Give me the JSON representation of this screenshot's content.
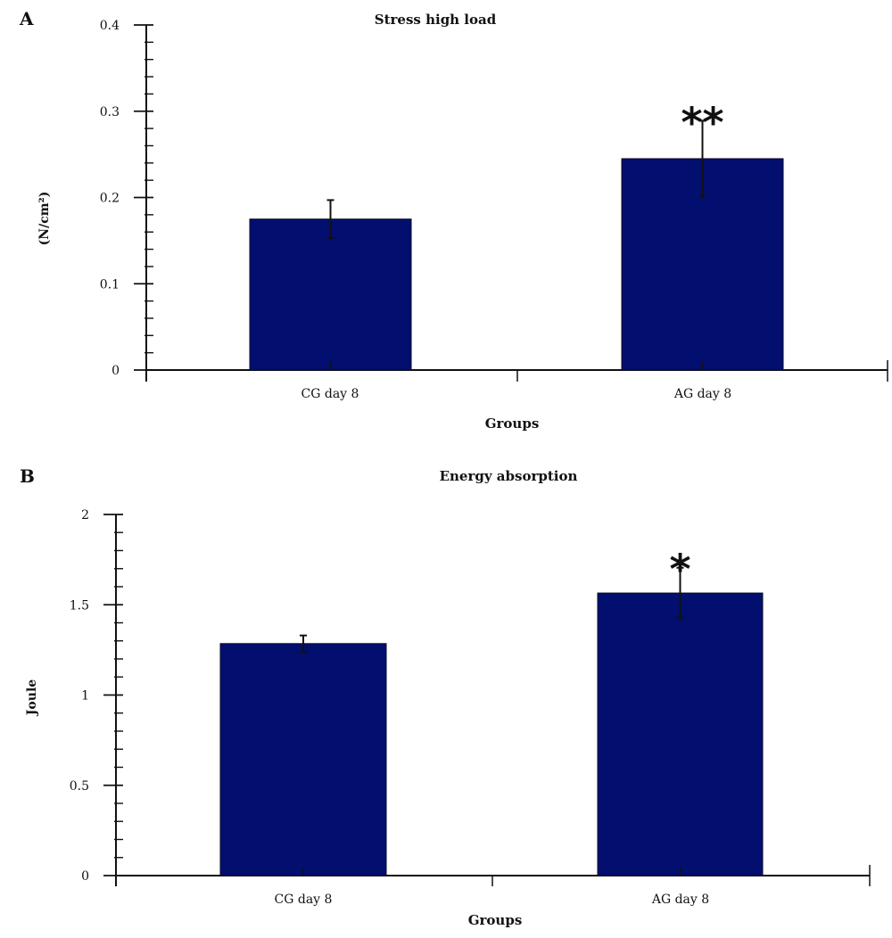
{
  "chart_data": [
    {
      "panel": "A",
      "type": "bar",
      "title": "Stress high load",
      "xlabel": "Groups",
      "ylabel": "(N/cm²)",
      "categories": [
        "CG day 8",
        "AG day 8"
      ],
      "values": [
        0.175,
        0.245
      ],
      "errors": [
        0.022,
        0.044
      ],
      "annotations": [
        "",
        "**"
      ],
      "ylim": [
        0,
        0.4
      ],
      "yticks": [
        "0",
        "0.1",
        "0.2",
        "0.3",
        "0.4"
      ],
      "bar_color": "#020f6e",
      "grid": false
    },
    {
      "panel": "B",
      "type": "bar",
      "title": "Energy absorption",
      "xlabel": "Groups",
      "ylabel": "Joule",
      "categories": [
        "CG day 8",
        "AG day 8"
      ],
      "values": [
        1.285,
        1.565
      ],
      "errors": [
        0.045,
        0.14
      ],
      "annotations": [
        "",
        "*"
      ],
      "ylim": [
        0,
        2
      ],
      "yticks": [
        "0",
        "0.5",
        "1",
        "1.5",
        "2"
      ],
      "bar_color": "#020f6e",
      "grid": false
    }
  ]
}
